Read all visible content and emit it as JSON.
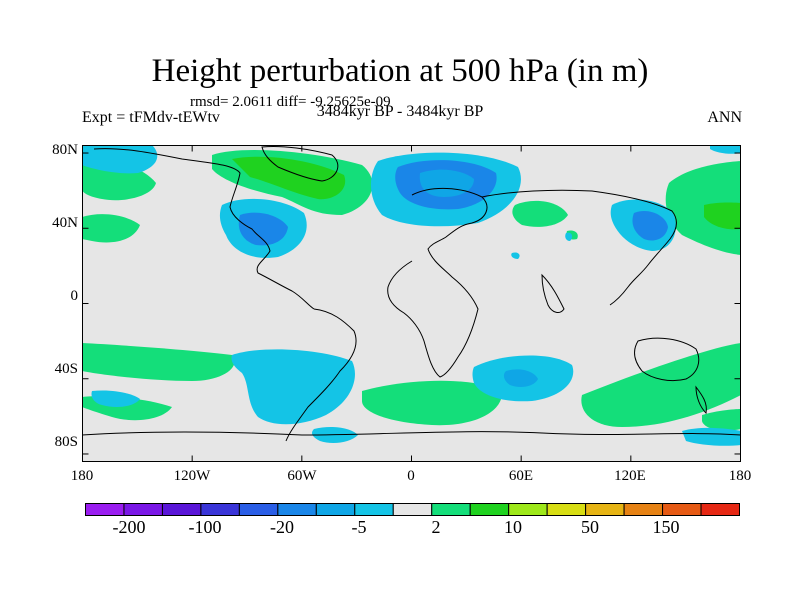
{
  "title": "Height perturbation at 500 hPa (in m)",
  "stats_line": "rmsd= 2.0611 diff= -9.25625e-09",
  "experiment": "Expt = tFMdv-tEWtv",
  "period": "3484kyr BP - 3484kyr BP",
  "season": "ANN",
  "lat_labels": [
    "80N",
    "40N",
    "0",
    "40S",
    "80S"
  ],
  "lon_labels": [
    "180",
    "120W",
    "60W",
    "0",
    "60E",
    "120E",
    "180"
  ],
  "colorbar": {
    "colors": [
      "#9a1df0",
      "#7a17e6",
      "#5a16d8",
      "#3a35d8",
      "#2a5ee6",
      "#1a86e8",
      "#0fa6e6",
      "#14c4e6",
      "#e6e6e6",
      "#14de7a",
      "#1fd21f",
      "#9ee81a",
      "#d8de14",
      "#e6b414",
      "#e68214",
      "#e65a14",
      "#e62814"
    ],
    "labels": [
      "-200",
      "-100",
      "-20",
      "-5",
      "2",
      "10",
      "50",
      "150"
    ]
  },
  "map_colors": {
    "background": "#e6e6e6",
    "light_blue": "#14c4e6",
    "mid_blue": "#0fa6e6",
    "dark_blue": "#1a86e8",
    "light_green": "#14de7a",
    "green": "#1fd21f"
  }
}
